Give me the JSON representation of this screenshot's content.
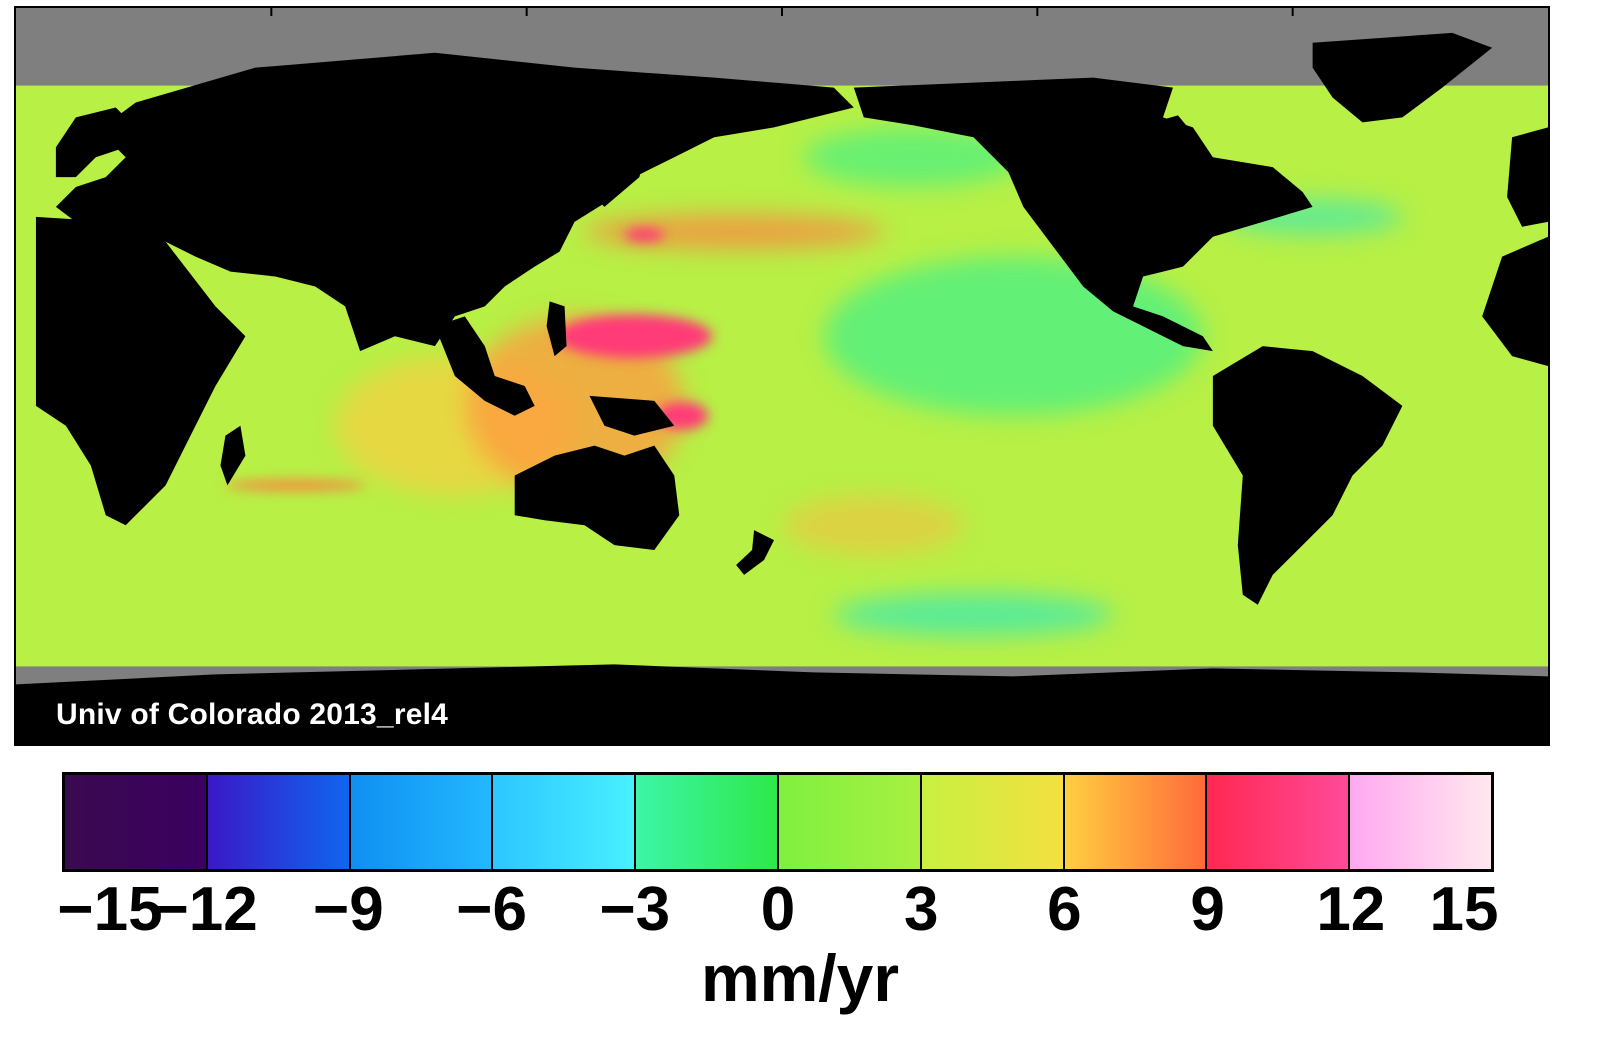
{
  "attribution": "Univ of Colorado 2013_rel4",
  "units": "mm/yr",
  "colorbar": {
    "ticks": [
      "−15",
      "−12",
      "−9",
      "−6",
      "−3",
      "0",
      "3",
      "6",
      "9",
      "12",
      "15"
    ],
    "range": [
      -15,
      15
    ],
    "segments": [
      {
        "from": "#3a0a4f",
        "to": "#3b0060"
      },
      {
        "from": "#3a18c8",
        "to": "#0f66ee"
      },
      {
        "from": "#0f8ff2",
        "to": "#22b8ff"
      },
      {
        "from": "#2cc6ff",
        "to": "#48f0ff"
      },
      {
        "from": "#3cf5a8",
        "to": "#2ee84a"
      },
      {
        "from": "#7ff040",
        "to": "#a8f040"
      },
      {
        "from": "#c8f040",
        "to": "#f4e040"
      },
      {
        "from": "#ffcf40",
        "to": "#ff6a3a"
      },
      {
        "from": "#ff2850",
        "to": "#ff4a9a"
      },
      {
        "from": "#ffa8f0",
        "to": "#ffe8ee"
      }
    ]
  },
  "colors": {
    "ocean_base": "#b8f046",
    "land": "#000000",
    "ice": "#7f7f7f",
    "high_trend": "#ff3a78",
    "low_trend": "#3ef08a"
  }
}
